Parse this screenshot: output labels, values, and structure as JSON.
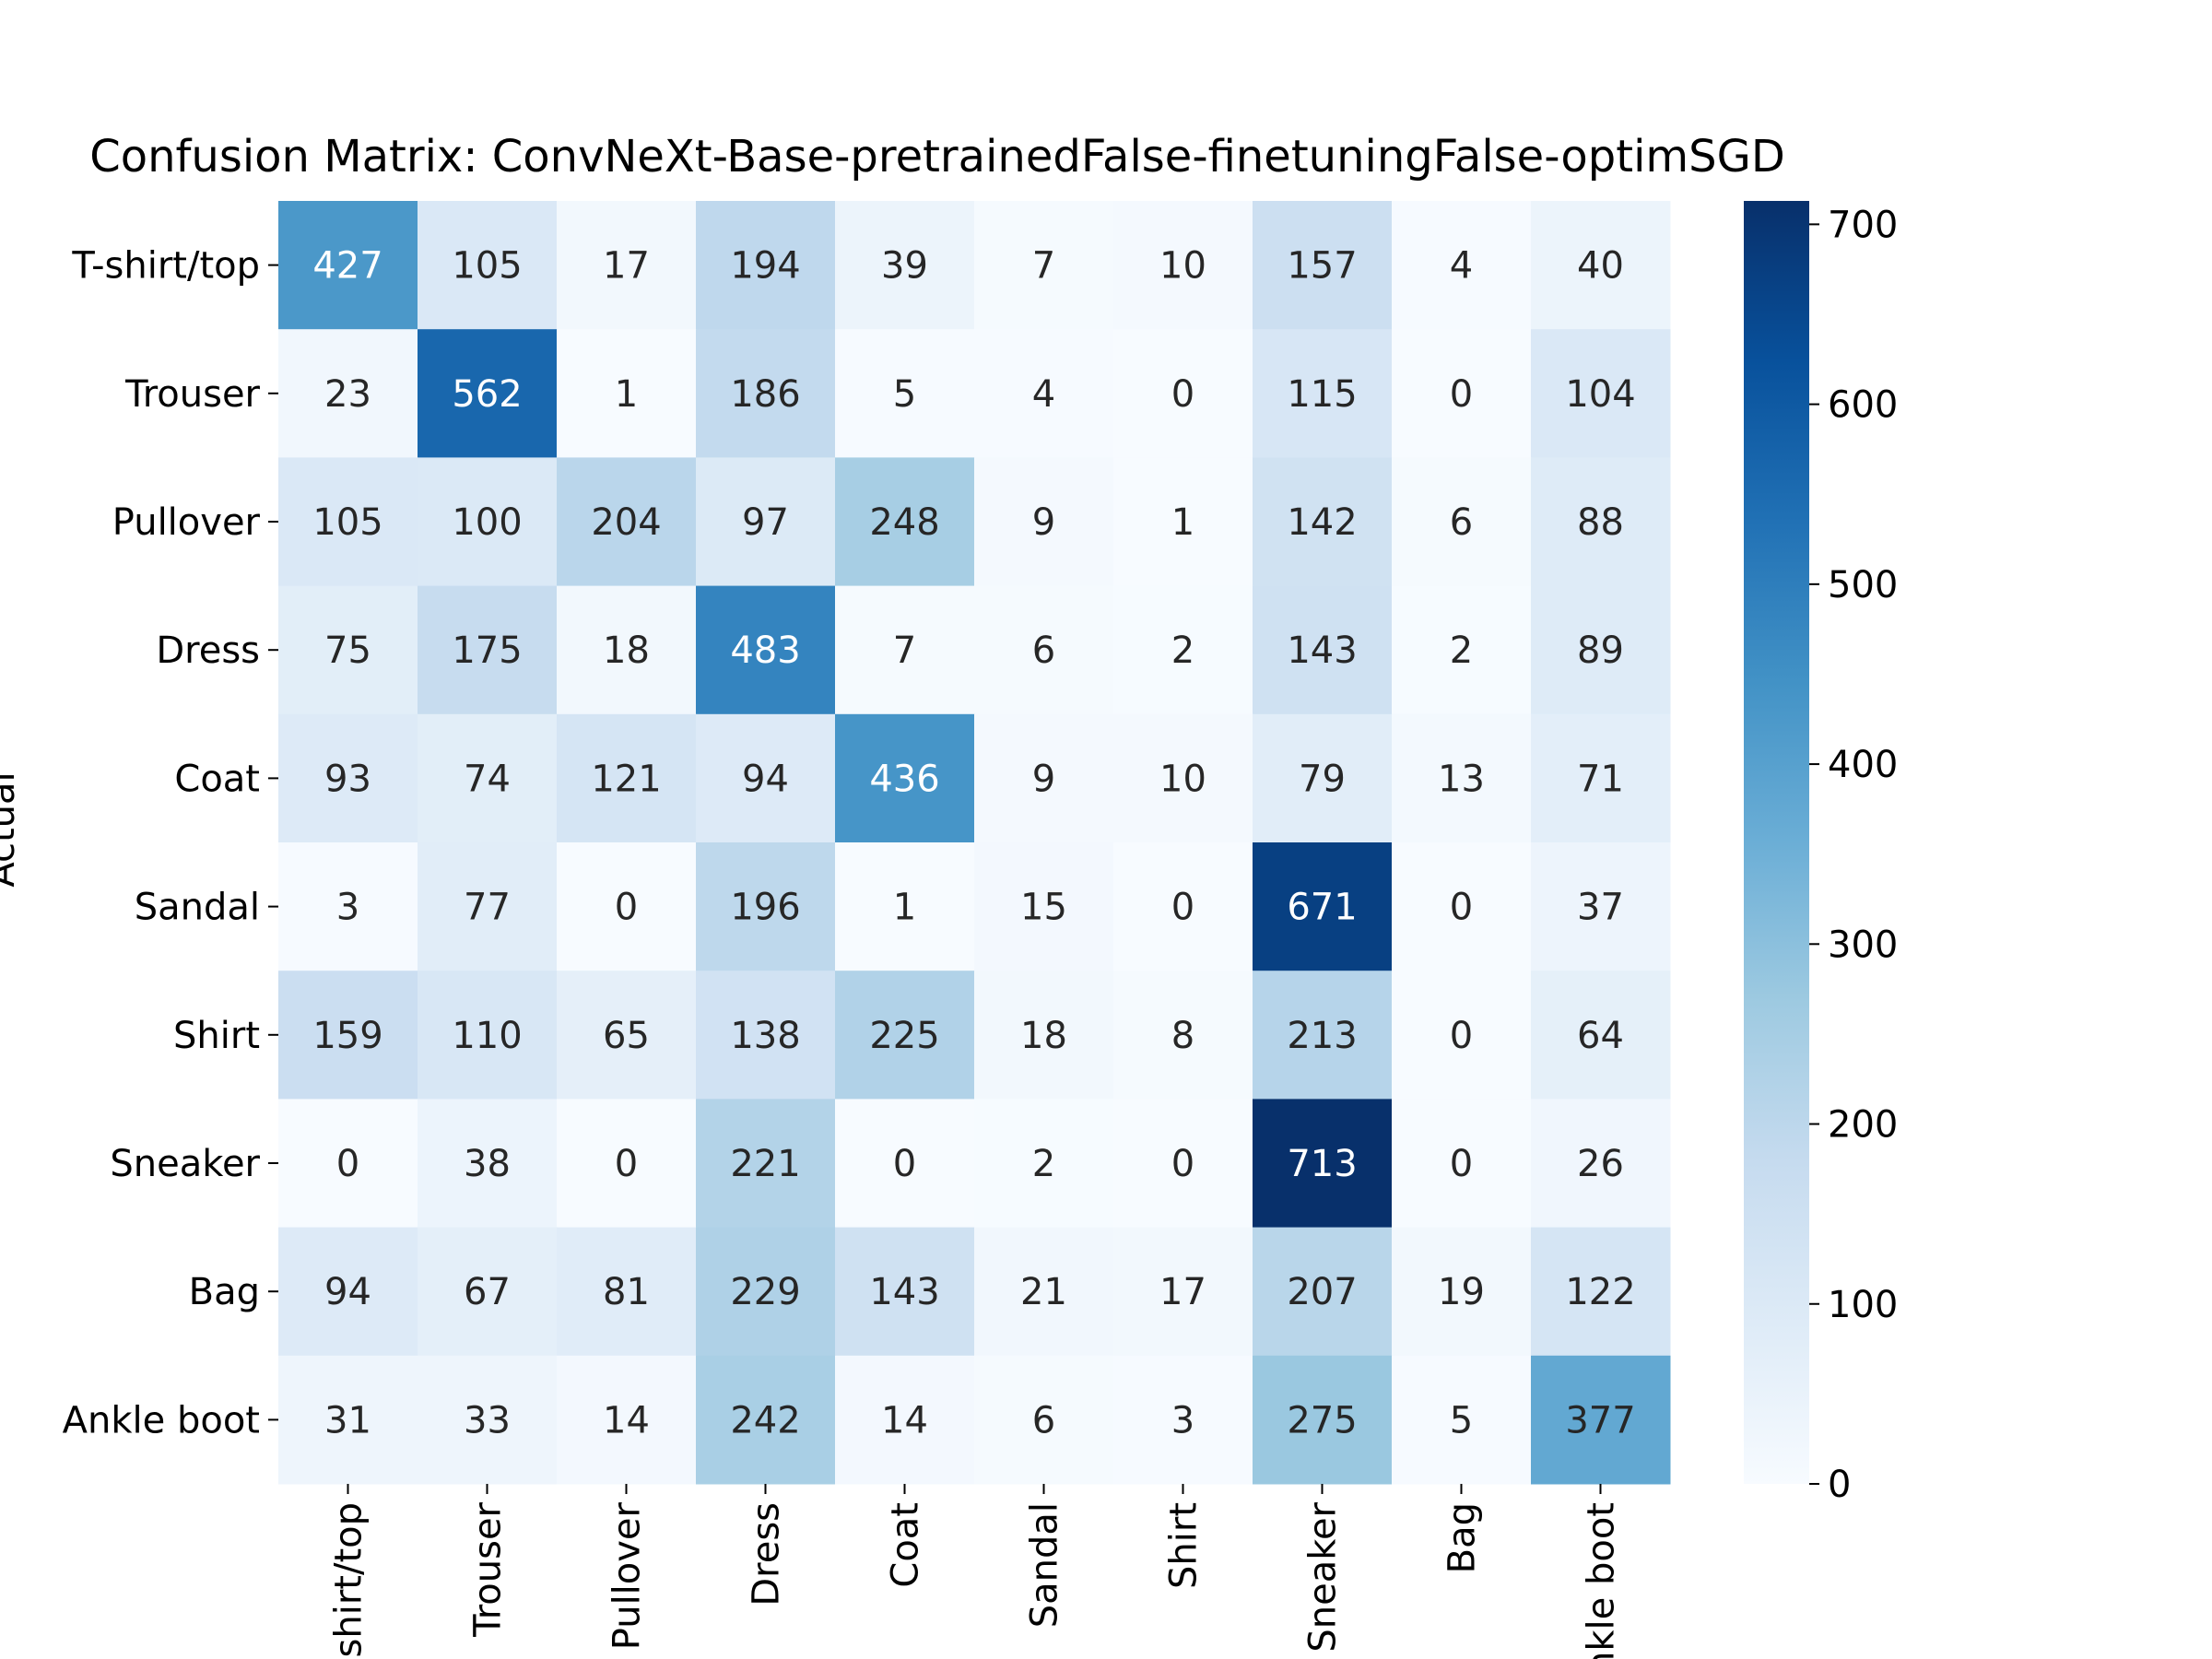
{
  "chart_data": {
    "type": "heatmap",
    "title": "Confusion Matrix: ConvNeXt-Base-pretrainedFalse-finetuningFalse-optimSGD",
    "xlabel": "",
    "ylabel": "Actual",
    "row_labels": [
      "T-shirt/top",
      "Trouser",
      "Pullover",
      "Dress",
      "Coat",
      "Sandal",
      "Shirt",
      "Sneaker",
      "Bag",
      "Ankle boot"
    ],
    "col_labels": [
      "T-shirt/top",
      "Trouser",
      "Pullover",
      "Dress",
      "Coat",
      "Sandal",
      "Shirt",
      "Sneaker",
      "Bag",
      "Ankle boot"
    ],
    "values": [
      [
        427,
        105,
        17,
        194,
        39,
        7,
        10,
        157,
        4,
        40
      ],
      [
        23,
        562,
        1,
        186,
        5,
        4,
        0,
        115,
        0,
        104
      ],
      [
        105,
        100,
        204,
        97,
        248,
        9,
        1,
        142,
        6,
        88
      ],
      [
        75,
        175,
        18,
        483,
        7,
        6,
        2,
        143,
        2,
        89
      ],
      [
        93,
        74,
        121,
        94,
        436,
        9,
        10,
        79,
        13,
        71
      ],
      [
        3,
        77,
        0,
        196,
        1,
        15,
        0,
        671,
        0,
        37
      ],
      [
        159,
        110,
        65,
        138,
        225,
        18,
        8,
        213,
        0,
        64
      ],
      [
        0,
        38,
        0,
        221,
        0,
        2,
        0,
        713,
        0,
        26
      ],
      [
        94,
        67,
        81,
        229,
        143,
        21,
        17,
        207,
        19,
        122
      ],
      [
        31,
        33,
        14,
        242,
        14,
        6,
        3,
        275,
        5,
        377
      ]
    ],
    "colormap": "Blues",
    "vmin": 0,
    "vmax": 713,
    "colorbar_ticks": [
      0,
      100,
      200,
      300,
      400,
      500,
      600,
      700
    ],
    "colorbar_tick_labels": [
      "0",
      "100",
      "200",
      "300",
      "400",
      "500",
      "600",
      "700"
    ],
    "annotated": true
  }
}
